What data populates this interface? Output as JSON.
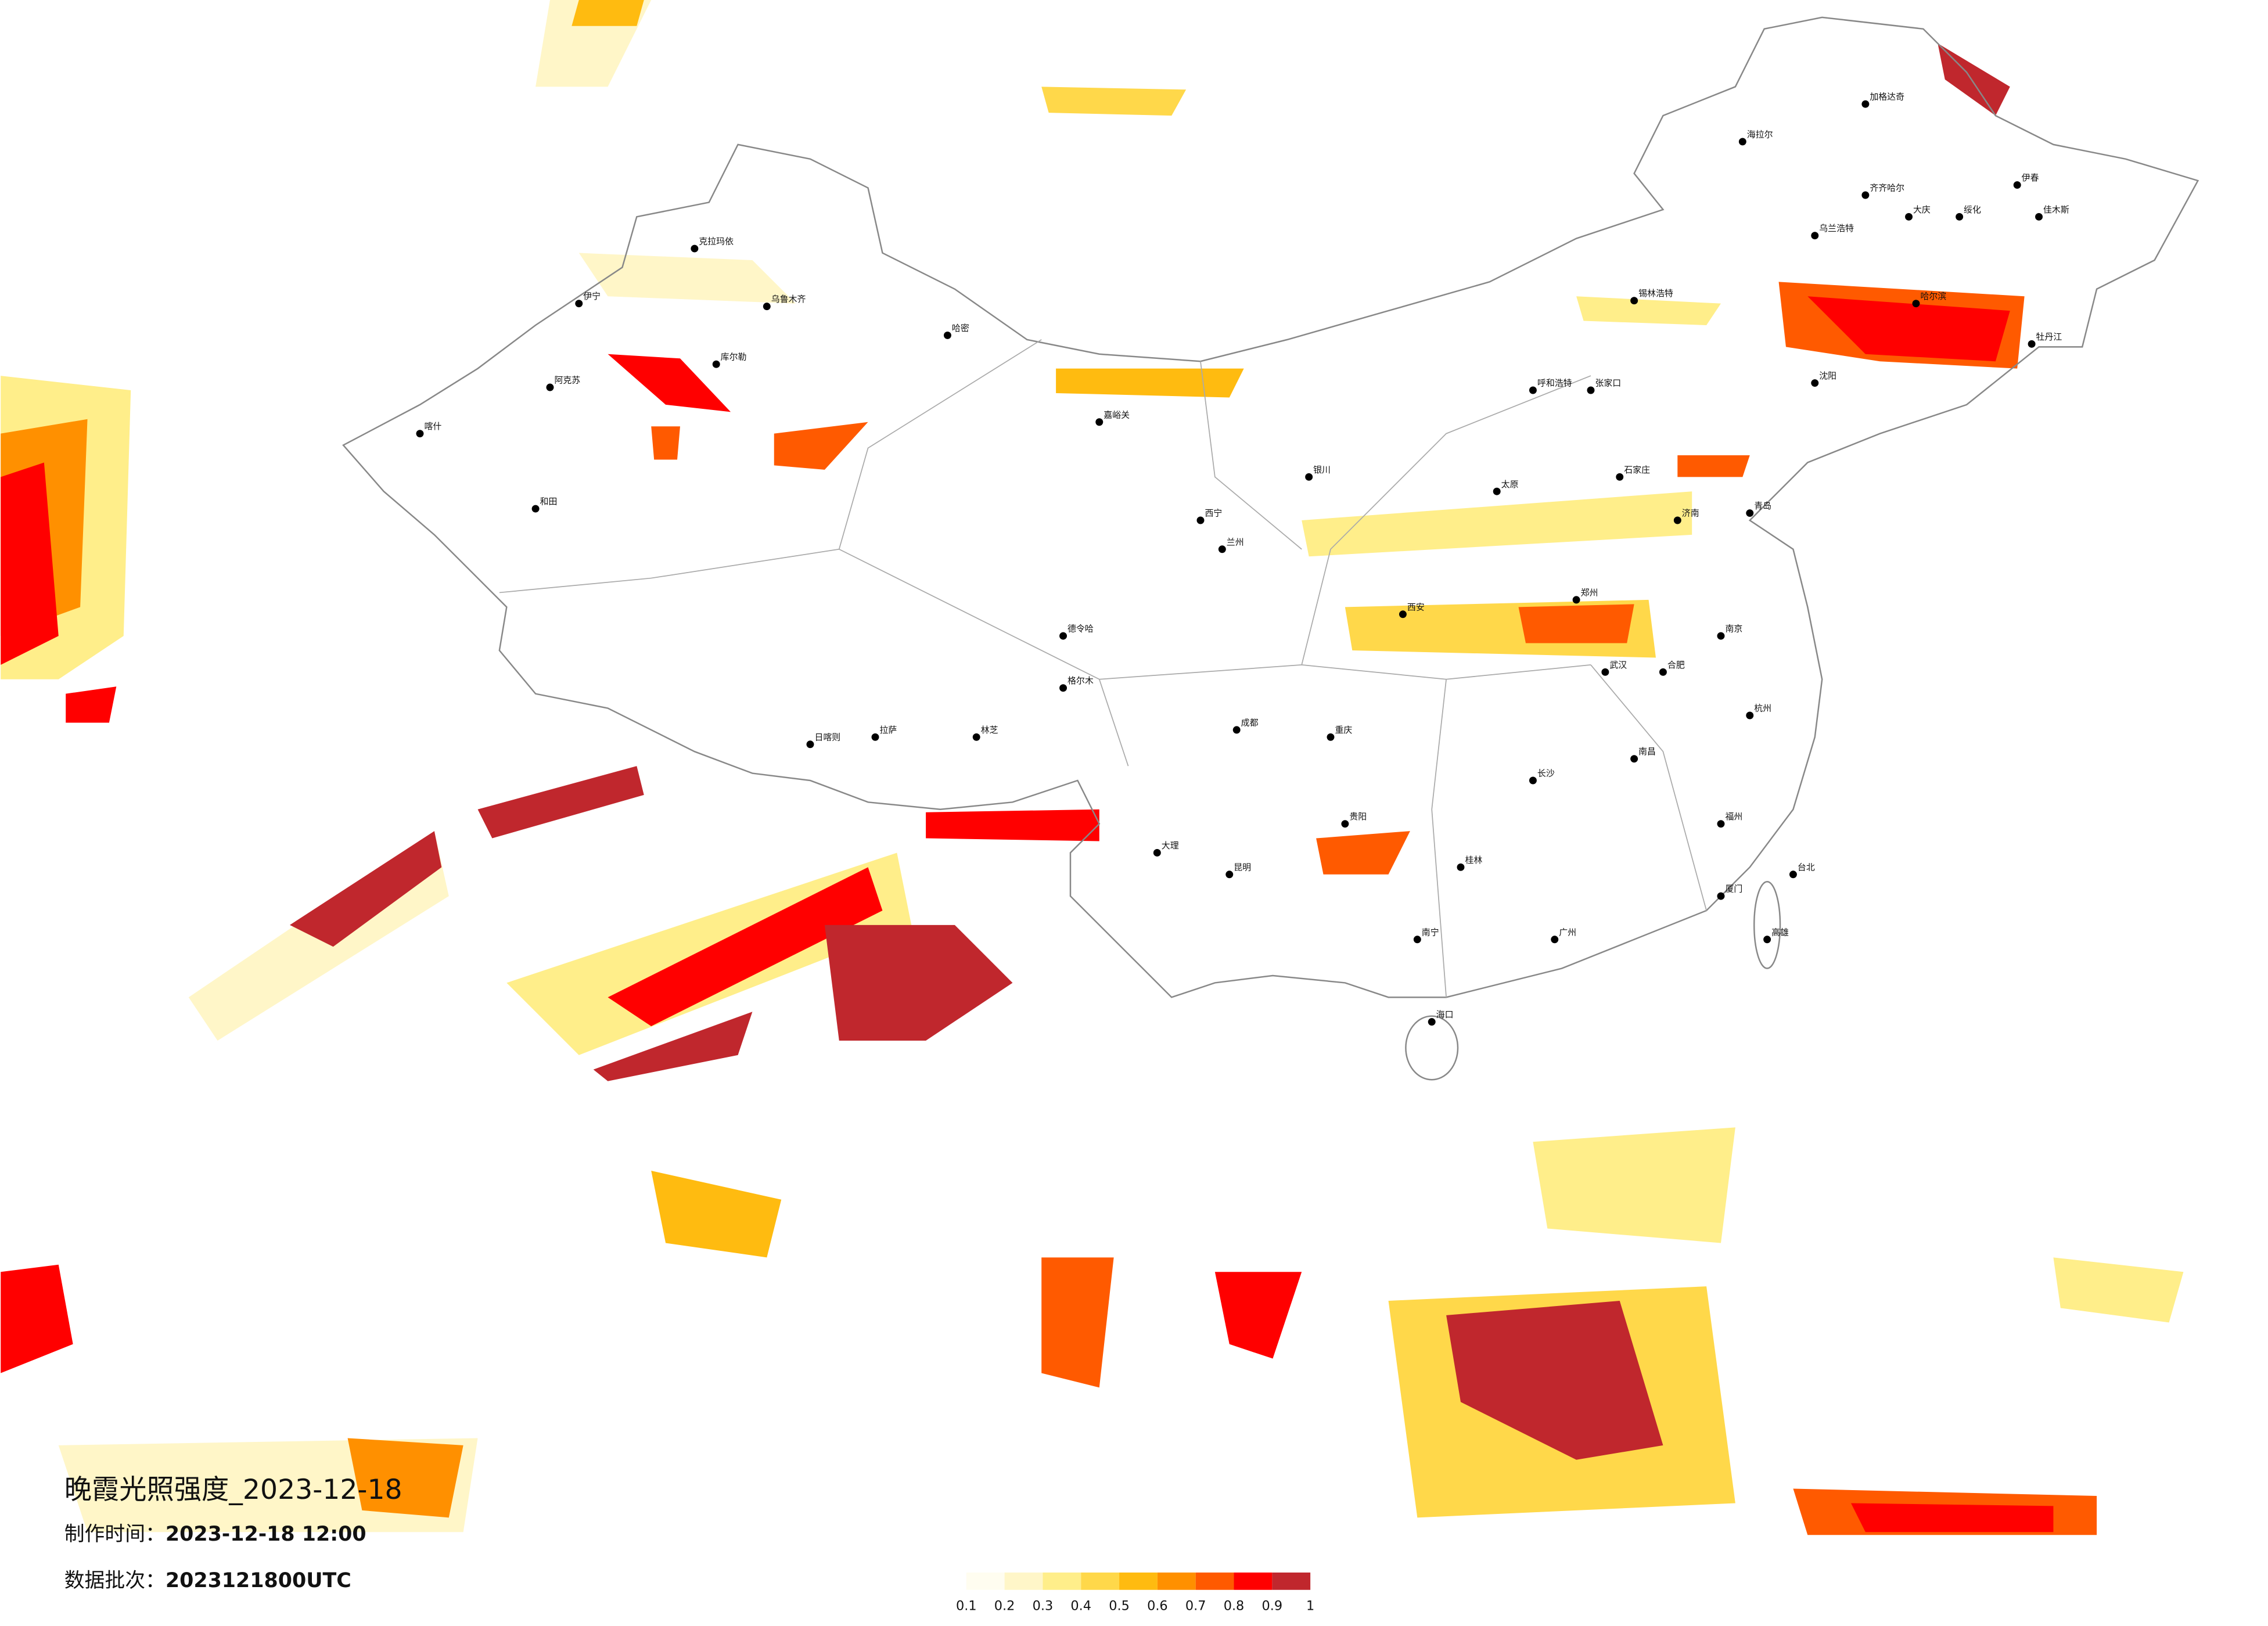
{
  "header": {
    "title": "晚霞光照强度_2023-12-18",
    "made_label": "制作时间：",
    "made_time": "2023-12-18 12:00",
    "batch_label": "数据批次：",
    "batch": "2023121800UTC"
  },
  "legend": {
    "ticks": [
      0.1,
      0.2,
      0.3,
      0.4,
      0.5,
      0.6,
      0.7,
      0.8,
      0.9,
      1
    ],
    "colors": [
      "#fffdf0",
      "#fff6c8",
      "#ffee8a",
      "#ffd84a",
      "#ffbb10",
      "#ff9000",
      "#ff5a00",
      "#ff0000",
      "#c0272d"
    ]
  },
  "cities": [
    "海拉尔",
    "加格达奇",
    "齐齐哈尔",
    "大庆",
    "绥化",
    "哈尔滨",
    "佳木斯",
    "牡丹江",
    "伊春",
    "乌兰浩特",
    "锡林浩特",
    "呼和浩特",
    "张家口",
    "石家庄",
    "济南",
    "郑州",
    "武汉",
    "长沙",
    "南昌",
    "福州",
    "广州",
    "南宁",
    "海口",
    "昆明",
    "贵阳",
    "重庆",
    "成都",
    "西宁",
    "兰州",
    "银川",
    "西安",
    "太原",
    "拉萨",
    "日喀则",
    "林芝",
    "和田",
    "喀什",
    "阿克苏",
    "克拉玛依",
    "伊宁",
    "乌鲁木齐",
    "库尔勒",
    "哈密",
    "格尔木",
    "德令哈",
    "嘉峪关",
    "台北",
    "高雄",
    "沈阳",
    "青岛",
    "南京",
    "杭州",
    "合肥",
    "厦门",
    "桂林",
    "大理"
  ]
}
